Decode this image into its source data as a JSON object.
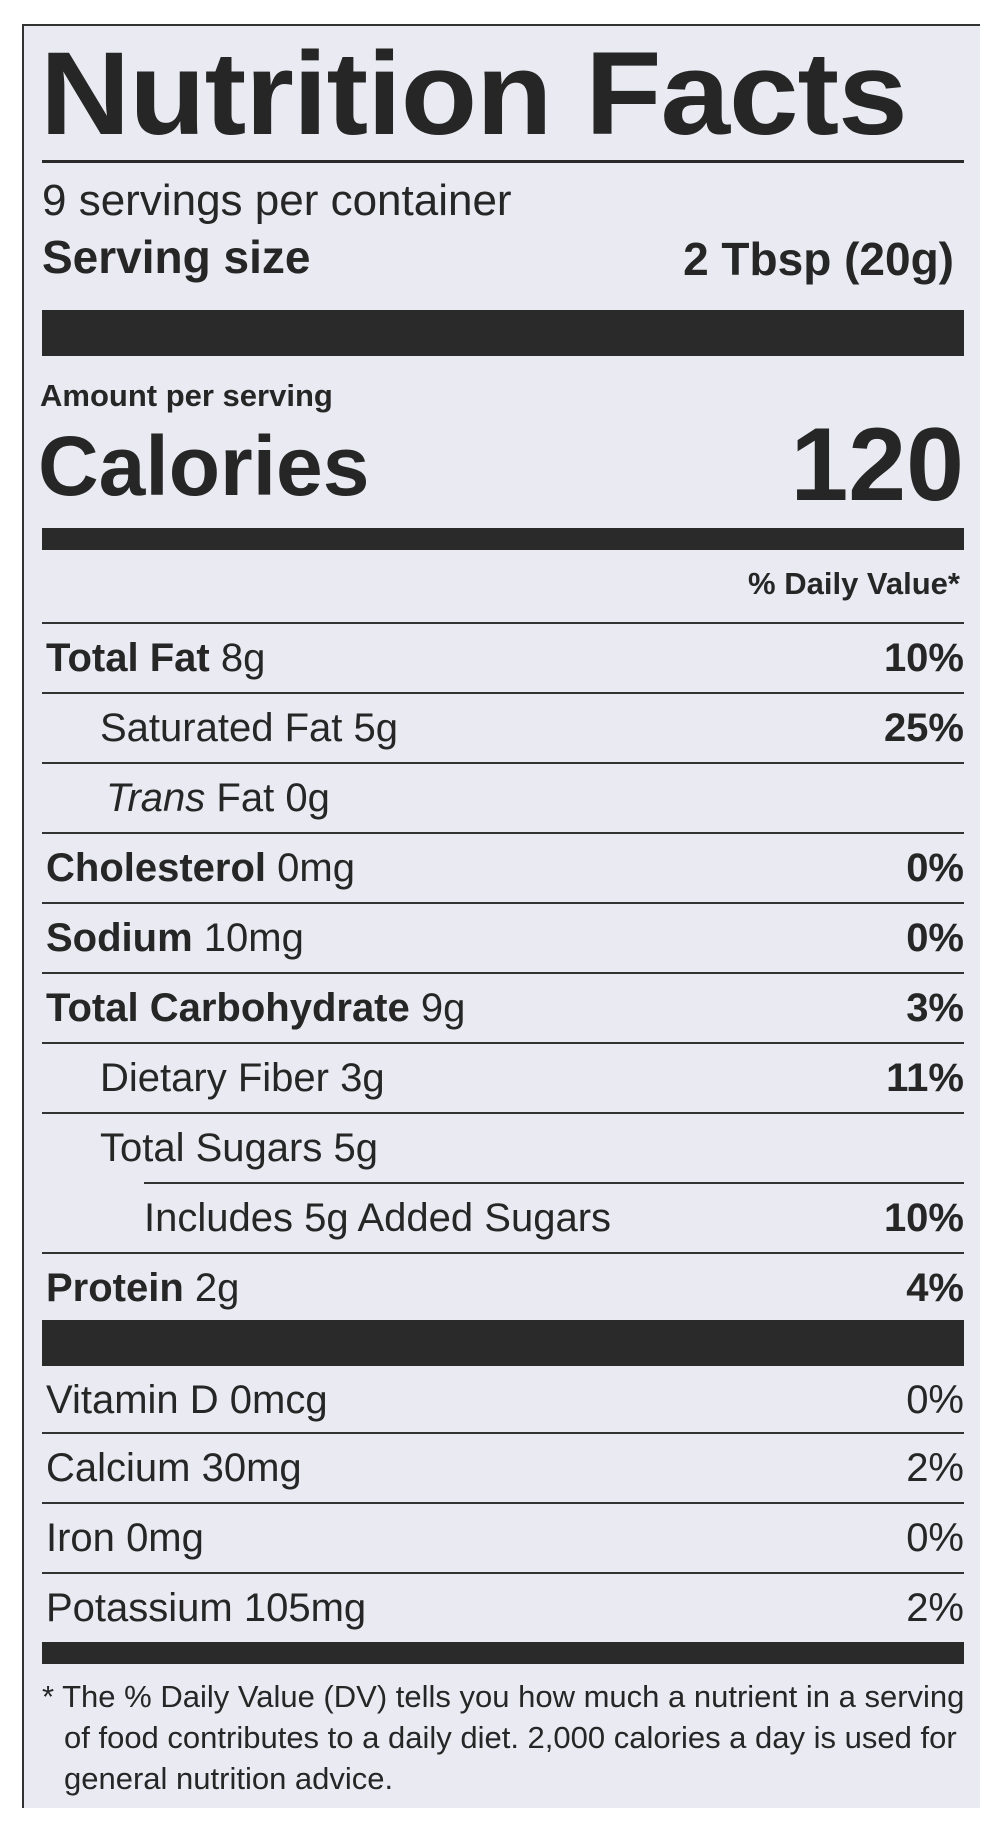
{
  "title": "Nutrition Facts",
  "servings_per_container": "9 servings per container",
  "serving_size_label": "Serving size",
  "serving_size_value": "2 Tbsp (20g)",
  "amount_per_serving": "Amount per serving",
  "calories_label": "Calories",
  "calories_value": "120",
  "daily_value_header": "% Daily Value*",
  "nutrients": [
    {
      "name": "Total Fat",
      "amount": "8g",
      "dv": "10%"
    },
    {
      "name": "Saturated Fat",
      "amount": "5g",
      "dv": "25%"
    },
    {
      "name_italic": "Trans",
      "name": "Fat",
      "amount": "0g",
      "dv": ""
    },
    {
      "name": "Cholesterol",
      "amount": "0mg",
      "dv": "0%"
    },
    {
      "name": "Sodium",
      "amount": "10mg",
      "dv": "0%"
    },
    {
      "name": "Total Carbohydrate",
      "amount": "9g",
      "dv": "3%"
    },
    {
      "name": "Dietary Fiber",
      "amount": "3g",
      "dv": "11%"
    },
    {
      "name": "Total Sugars",
      "amount": "5g",
      "dv": ""
    },
    {
      "name": "Includes 5g Added Sugars",
      "amount": "",
      "dv": "10%"
    },
    {
      "name": "Protein",
      "amount": "2g",
      "dv": "4%"
    }
  ],
  "vitamins": [
    {
      "name": "Vitamin D",
      "amount": "0mcg",
      "dv": "0%"
    },
    {
      "name": "Calcium",
      "amount": "30mg",
      "dv": "2%"
    },
    {
      "name": "Iron",
      "amount": "0mg",
      "dv": "0%"
    },
    {
      "name": "Potassium",
      "amount": "105mg",
      "dv": "2%"
    }
  ],
  "footnote": "* The % Daily Value (DV) tells you how much a nutrient in a serving of food contributes to a daily diet. 2,000 calories a day is used for general nutrition advice."
}
